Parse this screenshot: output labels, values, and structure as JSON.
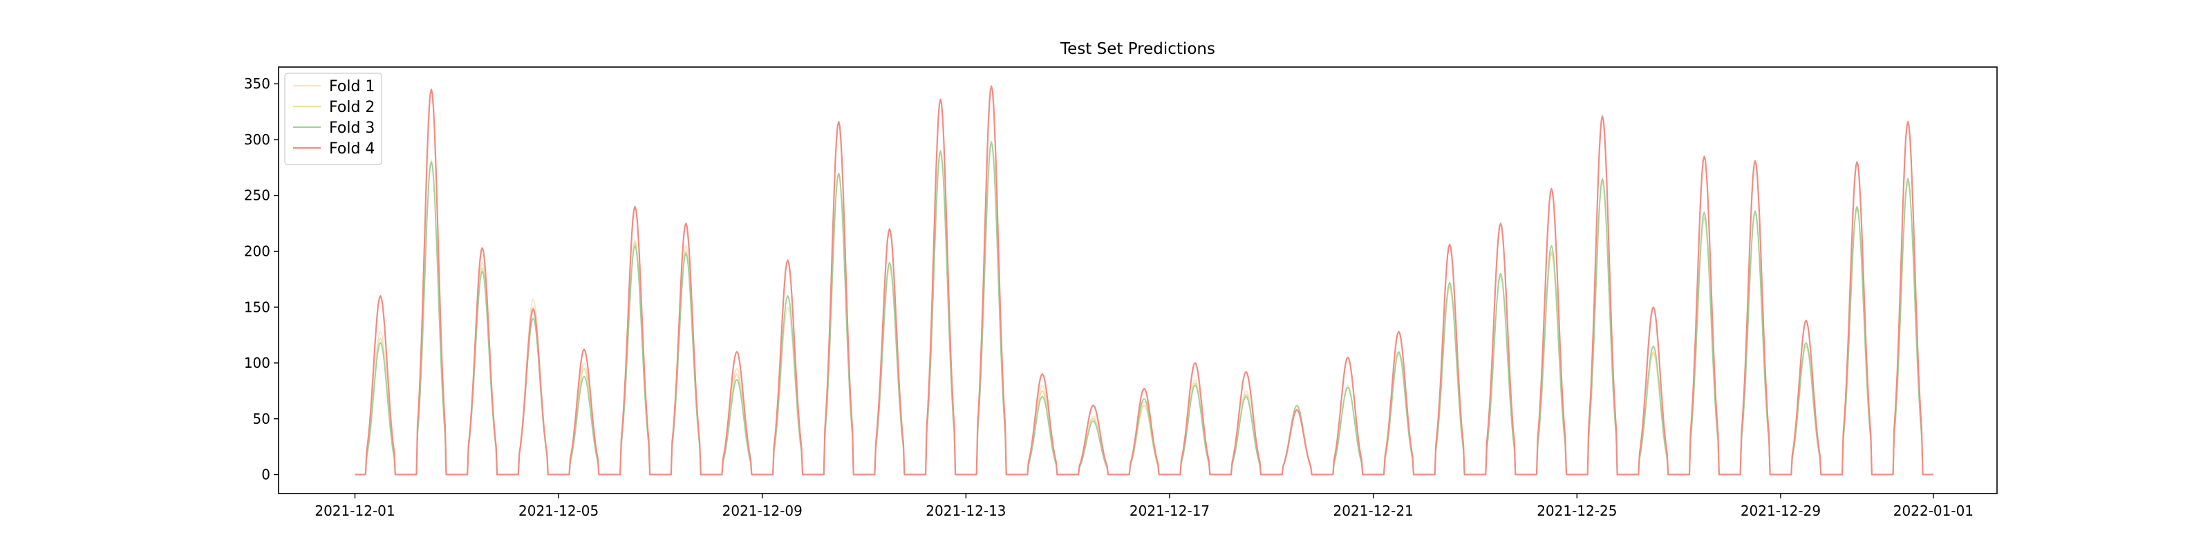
{
  "chart_data": {
    "type": "line",
    "title": "Test Set Predictions",
    "xlabel": "",
    "ylabel": "",
    "x_range": [
      "2021-11-29T12:00",
      "2022-01-02T06:00"
    ],
    "ylim": [
      -17,
      365
    ],
    "x_ticks": [
      "2021-12-01",
      "2021-12-05",
      "2021-12-09",
      "2021-12-13",
      "2021-12-17",
      "2021-12-21",
      "2021-12-25",
      "2021-12-29",
      "2022-01-01"
    ],
    "y_ticks": [
      0,
      50,
      100,
      150,
      200,
      250,
      300,
      350
    ],
    "legend_position": "upper-left",
    "grid": false,
    "series_period": "daily solar-like peaks, zero at night",
    "series": [
      {
        "name": "Fold 1",
        "color": "#fde2c8",
        "daily_peaks": [
          128,
          282,
          190,
          157,
          100,
          210,
          205,
          95,
          150,
          270,
          185,
          290,
          298,
          80,
          52,
          65,
          85,
          75,
          60,
          80,
          110,
          170,
          180,
          200,
          265,
          108,
          232,
          236,
          118,
          240,
          265,
          0
        ]
      },
      {
        "name": "Fold 2",
        "color": "#eadf9c",
        "daily_peaks": [
          122,
          280,
          185,
          150,
          95,
          208,
          200,
          90,
          160,
          268,
          188,
          288,
          296,
          75,
          50,
          62,
          82,
          72,
          62,
          78,
          108,
          168,
          178,
          198,
          262,
          110,
          230,
          234,
          115,
          238,
          262,
          0
        ]
      },
      {
        "name": "Fold 3",
        "color": "#9fd19b",
        "daily_peaks": [
          118,
          280,
          182,
          140,
          88,
          205,
          198,
          85,
          160,
          270,
          190,
          290,
          298,
          70,
          48,
          68,
          80,
          70,
          62,
          78,
          110,
          172,
          180,
          205,
          265,
          115,
          235,
          236,
          118,
          240,
          265,
          0
        ]
      },
      {
        "name": "Fold 4",
        "color": "#f28b82",
        "daily_peaks": [
          160,
          345,
          203,
          148,
          112,
          240,
          225,
          110,
          192,
          316,
          220,
          336,
          348,
          90,
          62,
          77,
          100,
          92,
          58,
          105,
          128,
          206,
          225,
          256,
          321,
          150,
          285,
          281,
          138,
          280,
          316,
          0
        ]
      }
    ]
  }
}
